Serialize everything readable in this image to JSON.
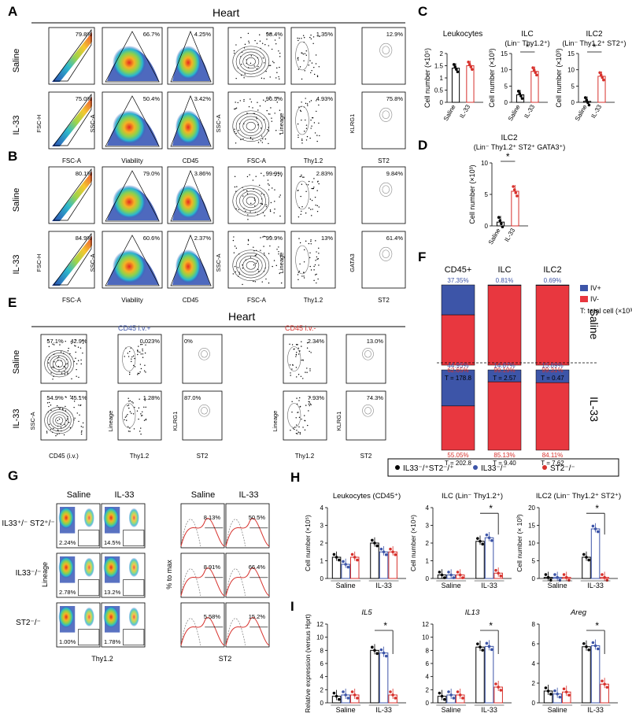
{
  "panels": {
    "A": {
      "letter": "A",
      "title": "Heart",
      "rows": [
        "Saline",
        "IL-33"
      ],
      "gates": [
        [
          "79.8%",
          "66.7%",
          "4.25%",
          "98.4%",
          "1.35%",
          "12.9%"
        ],
        [
          "75.0%",
          "50.4%",
          "3.42%",
          "96.5%",
          "4.93%",
          "75.8%"
        ]
      ],
      "xaxes": [
        "FSC-A",
        "Viability",
        "CD45",
        "FSC-A",
        "Thy1.2",
        "ST2"
      ],
      "yaxes": [
        "FSC-H",
        "SSC-A",
        "",
        "SSC-A",
        "Lineage",
        "KLRG1"
      ]
    },
    "B": {
      "letter": "B",
      "rows": [
        "Saline",
        "IL-33"
      ],
      "gates": [
        [
          "80.1%",
          "79.0%",
          "3.86%",
          "99.9%",
          "2.83%",
          "9.84%"
        ],
        [
          "84.9%",
          "60.6%",
          "2.37%",
          "99.9%",
          "13%",
          "61.4%"
        ]
      ],
      "xaxes": [
        "FSC-A",
        "Viability",
        "CD45",
        "FSC-A",
        "Thy1.2",
        "ST2"
      ],
      "yaxes": [
        "FSC-H",
        "SSC-A",
        "",
        "SSC-A",
        "Lineage",
        "GATA3"
      ]
    },
    "C": {
      "letter": "C",
      "charts": [
        {
          "title": "Leukocytes",
          "ylabel": "Cell number (×10⁵)",
          "sig": ""
        },
        {
          "title": "ILC",
          "subtitle": "(Lin⁻ Thy1.2⁺)",
          "ylabel": "Cell number (×10³)",
          "sig": "*"
        },
        {
          "title": "ILC2",
          "subtitle": "(Lin⁻ Thy1.2⁺ ST2⁺)",
          "ylabel": "Cell number (×10³)",
          "sig": "*"
        }
      ],
      "groups": [
        "Saline",
        "IL-33"
      ]
    },
    "D": {
      "letter": "D",
      "title": "ILC2",
      "subtitle": "(Lin⁻ Thy1.2⁺ ST2⁺ GATA3⁺)",
      "ylabel": "Cell number (×10³)",
      "sig": "*",
      "groups": [
        "Saline",
        "IL-33"
      ]
    },
    "E": {
      "letter": "E",
      "title": "Heart",
      "rows": [
        "Saline",
        "IL-33"
      ],
      "iv_pos": "CD45 i.v.+",
      "iv_neg": "CD45 i.v.-",
      "gates_pos": [
        [
          "57.1%",
          "42.9%",
          "0.023%",
          "0%"
        ],
        [
          "54.9%",
          "45.1%",
          "1.28%",
          "87.0%"
        ]
      ],
      "gates_neg": [
        [
          "2.34%",
          "13.0%"
        ],
        [
          "7.93%",
          "74.3%"
        ]
      ],
      "xaxes": [
        "CD45 (i.v.)",
        "Thy1.2",
        "ST2",
        "Thy1.2",
        "ST2"
      ],
      "yaxes": [
        "SSC-A",
        "Lineage",
        "KLRG1",
        "Lineage",
        "KLRG1"
      ]
    },
    "F": {
      "letter": "F",
      "columns": [
        "CD45+",
        "ILC",
        "ILC2"
      ],
      "rows": [
        "Saline",
        "IL-33"
      ],
      "legend": [
        "IV+",
        "IV-",
        "T: total cell (×10³)"
      ],
      "colors": {
        "iv_pos": "#3d55a8",
        "iv_neg": "#e8373f"
      },
      "saline": [
        {
          "iv_pos": "37.35%",
          "iv_neg": "62.65%",
          "total": "T = 178.8"
        },
        {
          "iv_pos": "0.81%",
          "iv_neg": "99.19%",
          "total": "T = 2.57"
        },
        {
          "iv_pos": "0.69%",
          "iv_neg": "99.31%",
          "total": "T = 0.47"
        }
      ],
      "il33": [
        {
          "iv_pos": "44.95%",
          "iv_neg": "55.05%",
          "total": "T = 202.8"
        },
        {
          "iv_pos": "14.87%",
          "iv_neg": "85.13%",
          "total": "T = 9.40"
        },
        {
          "iv_pos": "15.89%",
          "iv_neg": "84.11%",
          "total": "T = 7.62"
        }
      ]
    },
    "G": {
      "letter": "G",
      "cols": [
        "Saline",
        "IL-33"
      ],
      "rows": [
        "IL33⁺/⁻ ST2⁺/⁻",
        "IL33⁻/⁻",
        "ST2⁻/⁻"
      ],
      "dot_gates": [
        [
          "2.24%",
          "14.5%"
        ],
        [
          "2.78%",
          "13.2%"
        ],
        [
          "1.00%",
          "1.78%"
        ]
      ],
      "hist_gates": [
        [
          "8.13%",
          "50.5%"
        ],
        [
          "8.91%",
          "66.4%"
        ],
        [
          "5.58%",
          "15.2%"
        ]
      ],
      "xaxes": [
        "Thy1.2",
        "ST2"
      ],
      "yaxes": [
        "Lineage",
        "% to max"
      ]
    },
    "H": {
      "letter": "H",
      "legend": [
        "IL33⁻/⁺ST2⁻/⁺",
        "IL33⁻/⁻",
        "ST2⁻/⁻"
      ],
      "groups": [
        "Saline",
        "IL-33"
      ],
      "charts": [
        {
          "title": "Leukocytes (CD45⁺)",
          "ylabel": "Cell number (×10⁵)",
          "ticks": [
            "0",
            "1",
            "2",
            "3",
            "4"
          ]
        },
        {
          "title": "ILC (Lin⁻ Thy1.2⁺)",
          "ylabel": "Cell number (×10⁴)",
          "ticks": [
            "0",
            "1",
            "2",
            "3",
            "4"
          ],
          "sig": "*"
        },
        {
          "title": "ILC2 (Lin⁻ Thy1.2⁺ ST2⁺)",
          "ylabel": "Cell number (× 10³)",
          "ticks": [
            "0",
            "5",
            "10",
            "15",
            "20"
          ],
          "sig": "*"
        }
      ]
    },
    "I": {
      "letter": "I",
      "ylabel": "Relative expression (versus Hprt)",
      "groups": [
        "Saline",
        "IL-33"
      ],
      "charts": [
        {
          "title": "IL5",
          "ticks": [
            "0",
            "2",
            "4",
            "6",
            "8",
            "10",
            "12"
          ],
          "sig": "*"
        },
        {
          "title": "IL13",
          "ticks": [
            "0",
            "2",
            "4",
            "6",
            "8",
            "10",
            "12"
          ],
          "sig": "*"
        },
        {
          "title": "Areg",
          "ticks": [
            "0",
            "2",
            "4",
            "6",
            "8"
          ],
          "sig": "*"
        }
      ]
    }
  },
  "chart_data": [
    {
      "type": "bar",
      "panel": "C",
      "title": "Leukocytes",
      "categories": [
        "Saline",
        "IL-33"
      ],
      "values": [
        1.4,
        1.5
      ],
      "ylim": [
        0,
        2
      ],
      "ticks": [
        0,
        0.5,
        1,
        1.5,
        2
      ]
    },
    {
      "type": "bar",
      "panel": "C",
      "title": "ILC",
      "categories": [
        "Saline",
        "IL-33"
      ],
      "values": [
        2.3,
        9.5
      ],
      "ylim": [
        0,
        15
      ],
      "ticks": [
        0,
        5,
        10,
        15
      ]
    },
    {
      "type": "bar",
      "panel": "C",
      "title": "ILC2",
      "categories": [
        "Saline",
        "IL-33"
      ],
      "values": [
        0.3,
        8.0
      ],
      "ylim": [
        0,
        15
      ],
      "ticks": [
        0,
        5,
        10,
        15
      ]
    },
    {
      "type": "bar",
      "panel": "D",
      "title": "ILC2",
      "categories": [
        "Saline",
        "IL-33"
      ],
      "values": [
        0.6,
        5.5
      ],
      "ylim": [
        0,
        10
      ],
      "ticks": [
        0,
        5,
        10
      ]
    },
    {
      "type": "bar",
      "panel": "F",
      "categories": [
        "CD45+",
        "ILC",
        "ILC2"
      ],
      "series": [
        {
          "name": "IV+",
          "saline": [
            37.35,
            0.81,
            0.69
          ],
          "il33": [
            44.95,
            14.87,
            15.89
          ]
        },
        {
          "name": "IV-",
          "saline": [
            62.65,
            99.19,
            99.31
          ],
          "il33": [
            55.05,
            85.13,
            84.11
          ]
        }
      ]
    },
    {
      "type": "bar",
      "panel": "H",
      "title": "Leukocytes (CD45⁺)",
      "categories": [
        "Saline",
        "IL-33"
      ],
      "ylim": [
        0,
        4
      ],
      "series": [
        {
          "name": "IL33⁻/⁺ST2⁻/⁺",
          "values": [
            1.2,
            2.0
          ]
        },
        {
          "name": "IL33⁻/⁻",
          "values": [
            0.8,
            1.5
          ]
        },
        {
          "name": "ST2⁻/⁻",
          "values": [
            1.2,
            1.5
          ]
        }
      ]
    },
    {
      "type": "bar",
      "panel": "H",
      "title": "ILC (Lin⁻ Thy1.2⁺)",
      "categories": [
        "Saline",
        "IL-33"
      ],
      "ylim": [
        0,
        4
      ],
      "series": [
        {
          "name": "IL33⁻/⁺ST2⁻/⁺",
          "values": [
            0.2,
            2.1
          ]
        },
        {
          "name": "IL33⁻/⁻",
          "values": [
            0.2,
            2.3
          ]
        },
        {
          "name": "ST2⁻/⁻",
          "values": [
            0.2,
            0.3
          ]
        }
      ]
    },
    {
      "type": "bar",
      "panel": "H",
      "title": "ILC2 (Lin⁻ Thy1.2⁺ ST2⁺)",
      "categories": [
        "Saline",
        "IL-33"
      ],
      "ylim": [
        0,
        20
      ],
      "series": [
        {
          "name": "IL33⁻/⁺ST2⁻/⁺",
          "values": [
            0.3,
            6.0
          ]
        },
        {
          "name": "IL33⁻/⁻",
          "values": [
            0.3,
            14.0
          ]
        },
        {
          "name": "ST2⁻/⁻",
          "values": [
            0.3,
            0.3
          ]
        }
      ]
    },
    {
      "type": "bar",
      "panel": "I",
      "title": "IL5",
      "categories": [
        "Saline",
        "IL-33"
      ],
      "ylim": [
        0,
        12
      ],
      "series": [
        {
          "name": "IL33⁻/⁺ST2⁻/⁺",
          "values": [
            1.0,
            8.0
          ]
        },
        {
          "name": "IL33⁻/⁻",
          "values": [
            1.2,
            7.6
          ]
        },
        {
          "name": "ST2⁻/⁻",
          "values": [
            1.2,
            1.2
          ]
        }
      ]
    },
    {
      "type": "bar",
      "panel": "I",
      "title": "IL13",
      "categories": [
        "Saline",
        "IL-33"
      ],
      "ylim": [
        0,
        12
      ],
      "series": [
        {
          "name": "IL33⁻/⁺ST2⁻/⁺",
          "values": [
            1.0,
            8.5
          ]
        },
        {
          "name": "IL33⁻/⁻",
          "values": [
            1.2,
            8.6
          ]
        },
        {
          "name": "ST2⁻/⁻",
          "values": [
            1.2,
            2.4
          ]
        }
      ]
    },
    {
      "type": "bar",
      "panel": "I",
      "title": "Areg",
      "categories": [
        "Saline",
        "IL-33"
      ],
      "ylim": [
        0,
        8
      ],
      "series": [
        {
          "name": "IL33⁻/⁺ST2⁻/⁺",
          "values": [
            1.2,
            5.7
          ]
        },
        {
          "name": "IL33⁻/⁻",
          "values": [
            0.9,
            5.8
          ]
        },
        {
          "name": "ST2⁻/⁻",
          "values": [
            1.1,
            1.9
          ]
        }
      ]
    }
  ]
}
